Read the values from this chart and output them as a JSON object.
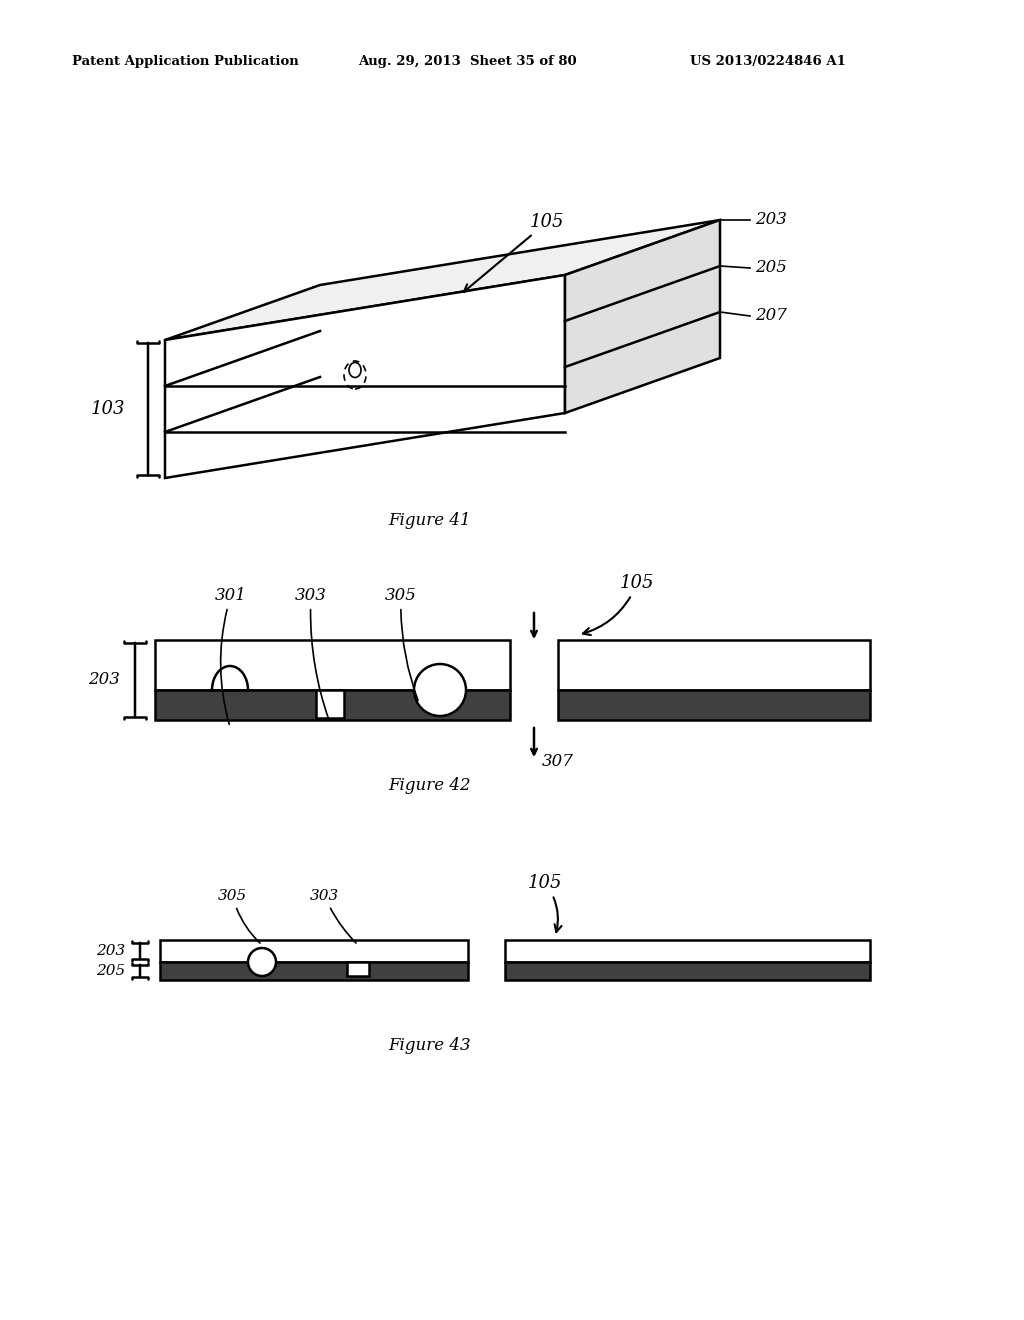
{
  "bg_color": "#ffffff",
  "header_left": "Patent Application Publication",
  "header_mid": "Aug. 29, 2013  Sheet 35 of 80",
  "header_right": "US 2013/0224846 A1",
  "fig41_caption": "Figure 41",
  "fig42_caption": "Figure 42",
  "fig43_caption": "Figure 43",
  "line_color": "#000000",
  "text_color": "#000000",
  "gray_dark": "#404040",
  "gray_light": "#d8d8d8"
}
